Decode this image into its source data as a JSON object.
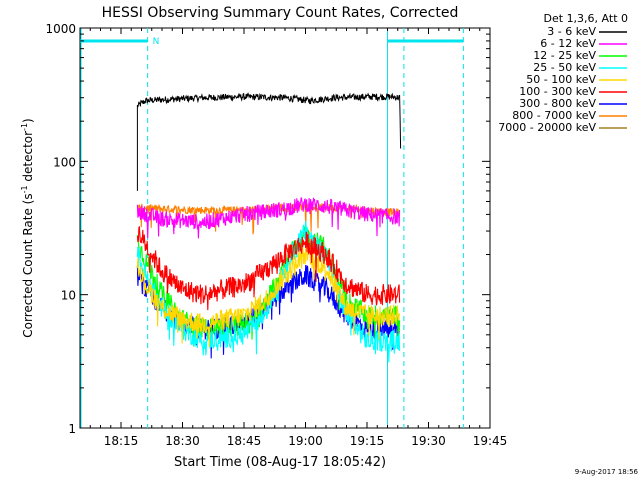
{
  "chart_data": {
    "type": "line",
    "title": "HESSI Observing Summary Count Rates, Corrected",
    "xlabel": "Start Time (08-Aug-17 18:05:42)",
    "ylabel_main": "Corrected Count Rate (s",
    "ylabel_sup1": "-1",
    "ylabel_mid": " detector",
    "ylabel_sup2": "-1",
    "ylabel_end": ")",
    "y_scale": "log",
    "ylim": [
      1,
      1000
    ],
    "x_range_minutes": [
      0,
      100
    ],
    "x_ticks": [
      {
        "min": 10,
        "label": "18:15"
      },
      {
        "min": 25,
        "label": "18:30"
      },
      {
        "min": 40,
        "label": "18:45"
      },
      {
        "min": 55,
        "label": "19:00"
      },
      {
        "min": 70,
        "label": "19:15"
      },
      {
        "min": 85,
        "label": "19:30"
      },
      {
        "min": 100,
        "label": "19:45"
      }
    ],
    "y_ticks": [
      {
        "value": 1,
        "label": "1"
      },
      {
        "value": 10,
        "label": "10"
      },
      {
        "value": 100,
        "label": "100"
      },
      {
        "value": 1000,
        "label": "1000"
      }
    ],
    "legend_title": "Det 1,3,6, Att 0",
    "legend_placement": "outside right, top",
    "series": [
      {
        "name": "3 - 6 keV",
        "color": "#000000",
        "x": [
          14,
          16,
          20,
          30,
          40,
          50,
          56,
          62,
          70,
          76,
          78,
          78.2
        ],
        "y": [
          260,
          285,
          290,
          300,
          305,
          300,
          285,
          300,
          305,
          305,
          300,
          120
        ]
      },
      {
        "name": "6 - 12 keV",
        "color": "#ff00ff",
        "x": [
          14,
          20,
          30,
          40,
          45,
          50,
          55,
          60,
          65,
          70,
          78
        ],
        "y": [
          42,
          37,
          35,
          40,
          42,
          44,
          48,
          46,
          43,
          40,
          38
        ]
      },
      {
        "name": "12 - 25 keV",
        "color": "#00ff00",
        "x": [
          14,
          16,
          20,
          25,
          30,
          40,
          45,
          50,
          55,
          60,
          65,
          70,
          78
        ],
        "y": [
          25,
          18,
          10,
          6.5,
          5.5,
          6,
          8,
          18,
          28,
          22,
          9,
          7,
          7
        ]
      },
      {
        "name": "25 - 50 keV",
        "color": "#00ffff",
        "x": [
          14,
          16,
          20,
          25,
          30,
          40,
          45,
          50,
          55,
          60,
          65,
          70,
          78
        ],
        "y": [
          20,
          14,
          8,
          5.5,
          4.5,
          5,
          7,
          16,
          30,
          20,
          7,
          4.5,
          4.5
        ]
      },
      {
        "name": "50 - 100 keV",
        "color": "#ffd700",
        "x": [
          14,
          16,
          20,
          25,
          30,
          40,
          45,
          50,
          55,
          60,
          65,
          70,
          78
        ],
        "y": [
          18,
          12,
          8,
          6.5,
          6,
          7,
          9,
          14,
          20,
          16,
          8,
          7,
          7
        ]
      },
      {
        "name": "100 - 300 keV",
        "color": "#ff0000",
        "x": [
          14,
          16,
          20,
          25,
          30,
          40,
          45,
          50,
          55,
          60,
          65,
          70,
          78
        ],
        "y": [
          30,
          24,
          15,
          11,
          10,
          12,
          15,
          20,
          25,
          20,
          12,
          10,
          10
        ]
      },
      {
        "name": "300 - 800 keV",
        "color": "#0000ff",
        "x": [
          14,
          16,
          20,
          25,
          30,
          40,
          45,
          50,
          55,
          60,
          65,
          70,
          78
        ],
        "y": [
          14,
          11,
          8,
          6,
          5.5,
          6,
          8,
          11,
          14,
          11,
          7,
          5.5,
          5.5
        ]
      },
      {
        "name": "800 - 7000 keV",
        "color": "#ff8000",
        "x": [
          14,
          20,
          30,
          40,
          50,
          55,
          60,
          70,
          78
        ],
        "y": [
          45,
          44,
          43,
          43,
          45,
          46,
          45,
          43,
          41
        ]
      },
      {
        "name": "7000 - 20000 keV",
        "color": "#a0821e",
        "x": [],
        "y": []
      }
    ],
    "annotations": [
      {
        "text": "N",
        "x_min": 16.5
      }
    ],
    "timestamp": "9-Aug-2017 18:56"
  }
}
